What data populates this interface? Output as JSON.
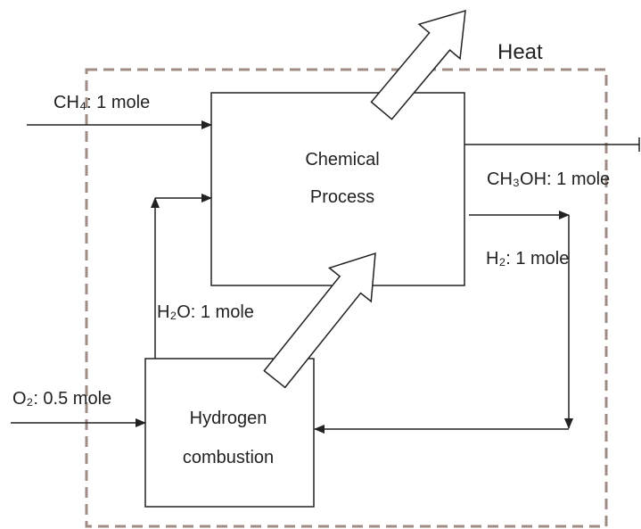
{
  "heat_label": "Heat",
  "chemical_process": {
    "lines": [
      "Chemical",
      "Process"
    ]
  },
  "hydrogen_combustion": {
    "lines": [
      "Hydrogen",
      "combustion"
    ]
  },
  "flows": {
    "ch4": "CH₄: 1 mole",
    "ch3oh": "CH₃OH: 1 mole",
    "h2": "H₂: 1 mole",
    "h2o": "H₂O: 1 mole",
    "o2": "O₂: 0.5 mole"
  }
}
